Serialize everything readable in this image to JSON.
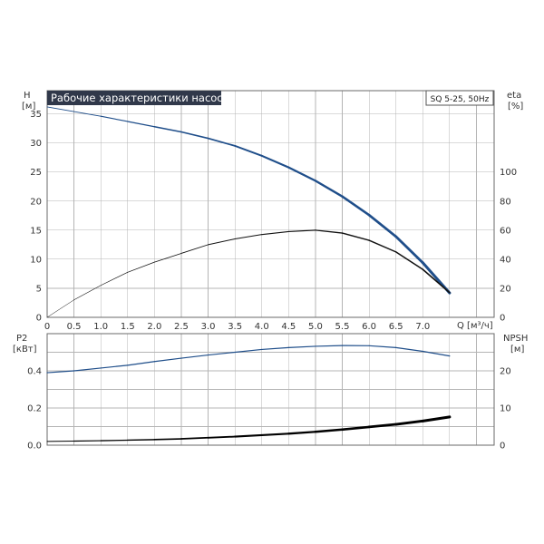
{
  "chart_data": [
    {
      "type": "line",
      "title": "Рабочие характеристики насоса",
      "tag": "SQ 5-25, 50Hz",
      "left_axis_label": [
        "H",
        "[м]"
      ],
      "right_axis_label": [
        "eta",
        "[%]"
      ],
      "x_axis_label": "Q [м³/ч]",
      "x_ticks": [
        "0",
        "0.5",
        "1.0",
        "1.5",
        "2.0",
        "2.5",
        "3.0",
        "3.5",
        "4.0",
        "4.5",
        "5.0",
        "5.5",
        "6.0",
        "6.5",
        "7.0"
      ],
      "left_ticks": [
        "0",
        "5",
        "10",
        "15",
        "20",
        "25",
        "30",
        "35"
      ],
      "right_ticks": [
        "0",
        "20",
        "40",
        "60",
        "80",
        "100"
      ],
      "xlim": [
        0,
        8.33
      ],
      "ylim_left": [
        0,
        39
      ],
      "ylim_right": [
        0,
        156
      ],
      "grid": true,
      "series": [
        {
          "axis": "left",
          "color": "#1f4e8a",
          "points": [
            [
              0,
              36.2
            ],
            [
              0.5,
              35.4
            ],
            [
              1.0,
              34.6
            ],
            [
              1.5,
              33.7
            ],
            [
              2.0,
              32.8
            ],
            [
              2.5,
              31.9
            ],
            [
              3.0,
              30.8
            ],
            [
              3.5,
              29.5
            ],
            [
              4.0,
              27.8
            ],
            [
              4.5,
              25.8
            ],
            [
              5.0,
              23.5
            ],
            [
              5.5,
              20.8
            ],
            [
              6.0,
              17.6
            ],
            [
              6.5,
              13.9
            ],
            [
              7.0,
              9.4
            ],
            [
              7.5,
              4.2
            ]
          ]
        },
        {
          "axis": "right",
          "color": "#111111",
          "points": [
            [
              0,
              0
            ],
            [
              0.5,
              12
            ],
            [
              1.0,
              22
            ],
            [
              1.5,
              31
            ],
            [
              2.0,
              38
            ],
            [
              2.5,
              44
            ],
            [
              3.0,
              50
            ],
            [
              3.5,
              54
            ],
            [
              4.0,
              57
            ],
            [
              4.5,
              59
            ],
            [
              5.0,
              60
            ],
            [
              5.5,
              58
            ],
            [
              6.0,
              53
            ],
            [
              6.5,
              45
            ],
            [
              7.0,
              33
            ],
            [
              7.5,
              17
            ]
          ]
        }
      ]
    },
    {
      "type": "line",
      "left_axis_label": [
        "P2",
        "[кВт]"
      ],
      "right_axis_label": [
        "NPSH",
        "[м]"
      ],
      "left_ticks": [
        "0.0",
        "0.2",
        "0.4"
      ],
      "right_ticks": [
        "0",
        "10",
        "20"
      ],
      "xlim": [
        0,
        8.33
      ],
      "ylim_left": [
        0,
        0.6
      ],
      "ylim_right": [
        0,
        30
      ],
      "grid": true,
      "series": [
        {
          "axis": "left",
          "color": "#1f4e8a",
          "points": [
            [
              0,
              0.39
            ],
            [
              0.5,
              0.4
            ],
            [
              1.0,
              0.415
            ],
            [
              1.5,
              0.43
            ],
            [
              2.0,
              0.45
            ],
            [
              2.5,
              0.468
            ],
            [
              3.0,
              0.485
            ],
            [
              3.5,
              0.5
            ],
            [
              4.0,
              0.515
            ],
            [
              4.5,
              0.525
            ],
            [
              5.0,
              0.532
            ],
            [
              5.5,
              0.536
            ],
            [
              6.0,
              0.535
            ],
            [
              6.5,
              0.525
            ],
            [
              7.0,
              0.505
            ],
            [
              7.5,
              0.48
            ]
          ]
        },
        {
          "axis": "right",
          "color": "#000000",
          "points": [
            [
              0,
              1.0
            ],
            [
              0.5,
              1.1
            ],
            [
              1.0,
              1.2
            ],
            [
              1.5,
              1.35
            ],
            [
              2.0,
              1.5
            ],
            [
              2.5,
              1.7
            ],
            [
              3.0,
              2.0
            ],
            [
              3.5,
              2.3
            ],
            [
              4.0,
              2.7
            ],
            [
              4.5,
              3.1
            ],
            [
              5.0,
              3.6
            ],
            [
              5.5,
              4.2
            ],
            [
              6.0,
              4.9
            ],
            [
              6.5,
              5.6
            ],
            [
              7.0,
              6.5
            ],
            [
              7.5,
              7.6
            ]
          ]
        }
      ]
    }
  ]
}
